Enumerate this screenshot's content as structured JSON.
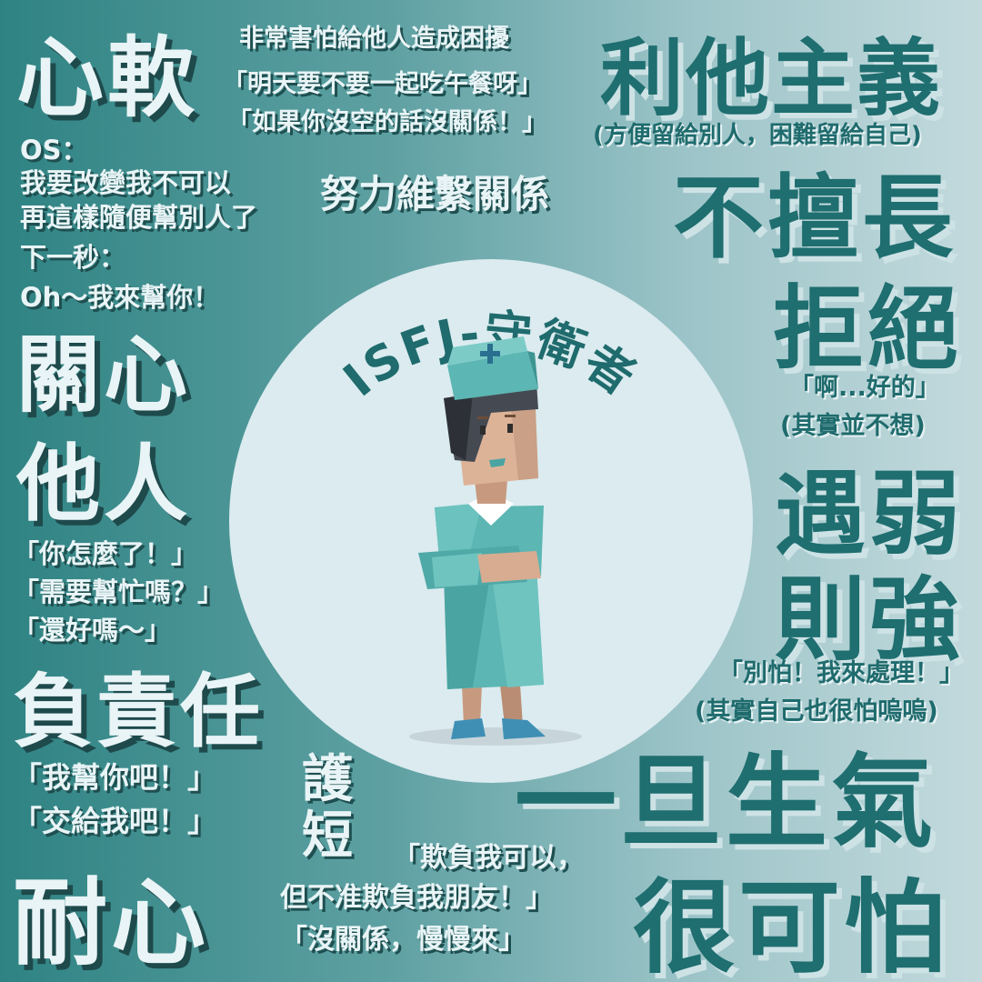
{
  "poster": {
    "title": "ISFJ-守衛者",
    "left": {
      "soft_heart": "心軟",
      "fear_trouble": "非常害怕給他人造成困擾",
      "lunch_q": "「明天要不要一起吃午餐呀」",
      "no_time": "「如果你沒空的話沒關係！」",
      "os_label": "OS：",
      "os_line1": "我要改變我不可以",
      "os_line2": "再這樣隨便幫別人了",
      "next_sec": "下一秒：",
      "oh_help": "Oh～我來幫你！",
      "maintain": "努力維繫關係",
      "care_1": "關心",
      "care_2": "他人",
      "q1": "「你怎麼了！」",
      "q2": "「需要幫忙嗎？」",
      "q3": "「還好嗎～」",
      "responsible": "負責任",
      "help_you": "「我幫你吧！」",
      "leave_me": "「交給我吧！」",
      "protect_1": "護",
      "protect_2": "短",
      "patience": "耐心",
      "bully_1": "「欺負我可以，",
      "bully_2": "但不准欺負我朋友！」",
      "slowly": "「沒關係，慢慢來」"
    },
    "right": {
      "altruism": "利他主義",
      "altruism_note": "(方便留給別人，困難留給自己)",
      "not_good_1": "不擅長",
      "not_good_2": "拒絕",
      "ah_ok": "「啊...好的」",
      "not_want": "(其實並不想)",
      "weak_1": "遇弱",
      "weak_2": "則強",
      "dont_fear": "「別怕！我來處理！」",
      "scared": "(其實自己也很怕嗚嗚)",
      "angry_1": "一旦生氣",
      "angry_2": "很可怕"
    },
    "colors": {
      "bg_left": "#2f8383",
      "bg_right": "#c3dadd",
      "circle": "#dbebef",
      "nurse_uniform": "#5cb6b3",
      "title_color": "#1f6b6d"
    }
  }
}
